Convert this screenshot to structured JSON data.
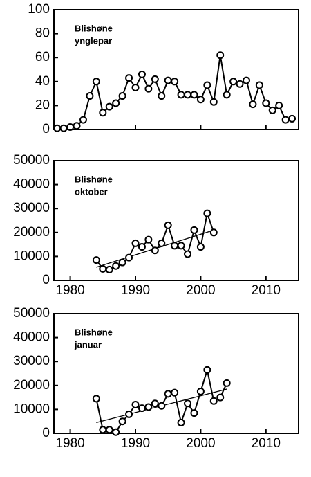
{
  "chart_data": [
    {
      "type": "line",
      "title_lines": [
        "Blishøne",
        "ynglepar"
      ],
      "color": "#000000",
      "show_xtick_labels": false,
      "x": [
        1978,
        1979,
        1980,
        1981,
        1982,
        1983,
        1984,
        1985,
        1986,
        1987,
        1988,
        1989,
        1990,
        1991,
        1992,
        1993,
        1994,
        1995,
        1996,
        1997,
        1998,
        1999,
        2000,
        2001,
        2002,
        2003,
        2004,
        2005,
        2006,
        2007,
        2008,
        2009,
        2010,
        2011,
        2012,
        2013,
        2014
      ],
      "values": [
        1,
        1,
        2,
        3,
        8,
        28,
        40,
        14,
        19,
        22,
        28,
        43,
        35,
        46,
        34,
        42,
        28,
        41,
        40,
        29,
        29,
        29,
        25,
        37,
        23,
        62,
        29,
        40,
        38,
        41,
        21,
        37,
        22,
        16,
        20,
        8,
        9
      ],
      "xlim": [
        1977.5,
        2015
      ],
      "xticks": [
        1980,
        1990,
        2000,
        2010
      ],
      "ylim": [
        0,
        100
      ],
      "yticks": [
        0,
        20,
        40,
        60,
        80,
        100
      ]
    },
    {
      "type": "line",
      "title_lines": [
        "Blishøne",
        "oktober"
      ],
      "color": "#000000",
      "show_xtick_labels": true,
      "x": [
        1984,
        1985,
        1986,
        1987,
        1988,
        1989,
        1990,
        1991,
        1992,
        1993,
        1994,
        1995,
        1996,
        1997,
        1998,
        1999,
        2000,
        2001,
        2002
      ],
      "values": [
        8500,
        4800,
        4500,
        6000,
        7500,
        9500,
        15500,
        14000,
        17000,
        12500,
        15500,
        23000,
        14500,
        14500,
        11000,
        21000,
        14000,
        28000,
        20000
      ],
      "trend_x": [
        1984,
        2002
      ],
      "trend_values": [
        5500,
        21000
      ],
      "xlim": [
        1977.5,
        2015
      ],
      "xticks": [
        1980,
        1990,
        2000,
        2010
      ],
      "ylim": [
        0,
        50000
      ],
      "yticks": [
        0,
        10000,
        20000,
        30000,
        40000,
        50000
      ]
    },
    {
      "type": "line",
      "title_lines": [
        "Blishøne",
        "januar"
      ],
      "color": "#000000",
      "show_xtick_labels": true,
      "x": [
        1984,
        1985,
        1986,
        1987,
        1988,
        1989,
        1990,
        1991,
        1992,
        1993,
        1994,
        1995,
        1996,
        1997,
        1998,
        1999,
        2000,
        2001,
        2002,
        2003,
        2004
      ],
      "values": [
        14500,
        1500,
        1500,
        500,
        5000,
        8000,
        12000,
        10500,
        11000,
        12500,
        11500,
        16500,
        17000,
        4500,
        12500,
        8500,
        17500,
        26500,
        13500,
        15000,
        21000
      ],
      "trend_x": [
        1984,
        2004
      ],
      "trend_values": [
        4500,
        18500
      ],
      "xlim": [
        1977.5,
        2015
      ],
      "xticks": [
        1980,
        1990,
        2000,
        2010
      ],
      "ylim": [
        0,
        50000
      ],
      "yticks": [
        0,
        10000,
        20000,
        30000,
        40000,
        50000
      ]
    }
  ]
}
